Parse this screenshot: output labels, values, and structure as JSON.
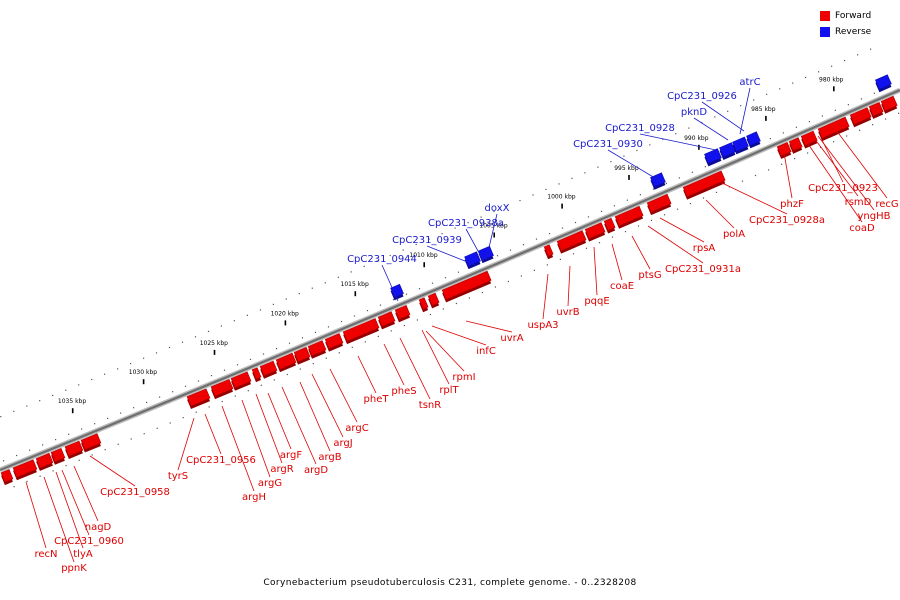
{
  "legend": {
    "forward_label": "Forward",
    "reverse_label": "Reverse",
    "forward_color": "#ee0000",
    "reverse_color": "#1111ee"
  },
  "caption": "Corynebacterium pseudotuberculosis C231, complete genome. - 0..2328208",
  "axis_ticks": [
    "980 kbp",
    "985 kbp",
    "990 kbp",
    "995 kbp",
    "1000 kbp",
    "1005 kbp",
    "1010 kbp",
    "1015 kbp",
    "1020 kbp",
    "1025 kbp",
    "1030 kbp",
    "1035 kbp"
  ],
  "reverse_genes": [
    "atrC",
    "pknD",
    "CpC231_0926",
    "CpC231_0928",
    "CpC231_0930",
    "doxX",
    "CpC231_0938a",
    "CpC231_0939",
    "CpC231_0944"
  ],
  "forward_genes": [
    "recG",
    "yngHB",
    "rsmD",
    "coaD",
    "CpC231_0923",
    "CpC231_0928a",
    "phzF",
    "polA",
    "rpsA",
    "CpC231_0931a",
    "ptsG",
    "coaE",
    "pqqE",
    "uvrB",
    "uspA3",
    "uvrA",
    "infC",
    "rpmI",
    "rplT",
    "tsnR",
    "pheS",
    "pheT",
    "argC",
    "argJ",
    "argB",
    "argD",
    "argF",
    "argR",
    "argG",
    "argH",
    "CpC231_0956",
    "tyrS",
    "CpC231_0958",
    "nagD",
    "CpC231_0960",
    "tlyA",
    "recN",
    "ppnK"
  ]
}
